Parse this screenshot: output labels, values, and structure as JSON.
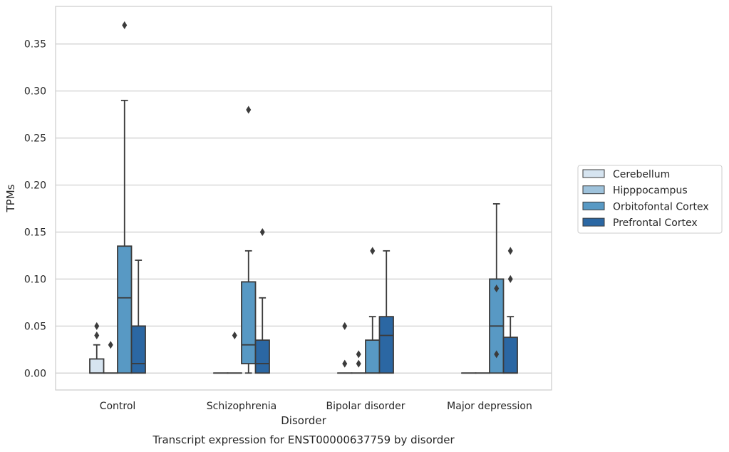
{
  "caption": "Transcript expression for ENST00000637759 by disorder",
  "chart_data": {
    "type": "box",
    "title": "",
    "xlabel": "Disorder",
    "ylabel": "TPMs",
    "ylim": [
      -0.018,
      0.39
    ],
    "yticks": [
      0.0,
      0.05,
      0.1,
      0.15,
      0.2,
      0.25,
      0.3,
      0.35
    ],
    "ytick_labels": [
      "0.00",
      "0.05",
      "0.10",
      "0.15",
      "0.20",
      "0.25",
      "0.30",
      "0.35"
    ],
    "grid": true,
    "legend_position": "right",
    "categories": [
      "Control",
      "Schizophrenia",
      "Bipolar disorder",
      "Major depression"
    ],
    "series": [
      {
        "name": "Cerebellum",
        "color": "#d6e4f0",
        "boxes": [
          {
            "q1": 0.0,
            "median": 0.0,
            "q3": 0.015,
            "whislo": 0.0,
            "whishi": 0.03,
            "fliers": [
              0.04,
              0.05
            ]
          },
          {
            "q1": 0.0,
            "median": 0.0,
            "q3": 0.0,
            "whislo": 0.0,
            "whishi": 0.0,
            "fliers": []
          },
          {
            "q1": 0.0,
            "median": 0.0,
            "q3": 0.0,
            "whislo": 0.0,
            "whishi": 0.0,
            "fliers": [
              0.01,
              0.05
            ]
          },
          {
            "q1": 0.0,
            "median": 0.0,
            "q3": 0.0,
            "whislo": 0.0,
            "whishi": 0.0,
            "fliers": []
          }
        ]
      },
      {
        "name": "Hipppocampus",
        "color": "#9ec2db",
        "boxes": [
          {
            "q1": 0.0,
            "median": 0.0,
            "q3": 0.0,
            "whislo": 0.0,
            "whishi": 0.0,
            "fliers": [
              0.03
            ]
          },
          {
            "q1": 0.0,
            "median": 0.0,
            "q3": 0.0,
            "whislo": 0.0,
            "whishi": 0.0,
            "fliers": [
              0.04
            ]
          },
          {
            "q1": 0.0,
            "median": 0.0,
            "q3": 0.0,
            "whislo": 0.0,
            "whishi": 0.0,
            "fliers": [
              0.01,
              0.02
            ]
          },
          {
            "q1": 0.0,
            "median": 0.0,
            "q3": 0.0,
            "whislo": 0.0,
            "whishi": 0.0,
            "fliers": []
          }
        ]
      },
      {
        "name": "Orbitofontal Cortex",
        "color": "#5899c4",
        "boxes": [
          {
            "q1": 0.0,
            "median": 0.08,
            "q3": 0.135,
            "whislo": 0.0,
            "whishi": 0.29,
            "fliers": [
              0.37
            ]
          },
          {
            "q1": 0.01,
            "median": 0.03,
            "q3": 0.097,
            "whislo": 0.0,
            "whishi": 0.13,
            "fliers": [
              0.28
            ]
          },
          {
            "q1": 0.0,
            "median": 0.0,
            "q3": 0.035,
            "whislo": 0.0,
            "whishi": 0.06,
            "fliers": [
              0.13
            ]
          },
          {
            "q1": 0.0,
            "median": 0.05,
            "q3": 0.1,
            "whislo": 0.0,
            "whishi": 0.18,
            "fliers": [
              0.02,
              0.09
            ]
          }
        ]
      },
      {
        "name": "Prefrontal Cortex",
        "color": "#2b67a3",
        "boxes": [
          {
            "q1": 0.0,
            "median": 0.01,
            "q3": 0.05,
            "whislo": 0.0,
            "whishi": 0.12,
            "fliers": []
          },
          {
            "q1": 0.0,
            "median": 0.01,
            "q3": 0.035,
            "whislo": 0.0,
            "whishi": 0.08,
            "fliers": [
              0.15
            ]
          },
          {
            "q1": 0.0,
            "median": 0.04,
            "q3": 0.06,
            "whislo": 0.0,
            "whishi": 0.13,
            "fliers": []
          },
          {
            "q1": 0.0,
            "median": 0.0,
            "q3": 0.038,
            "whislo": 0.0,
            "whishi": 0.06,
            "fliers": [
              0.1,
              0.13
            ]
          }
        ]
      }
    ]
  }
}
